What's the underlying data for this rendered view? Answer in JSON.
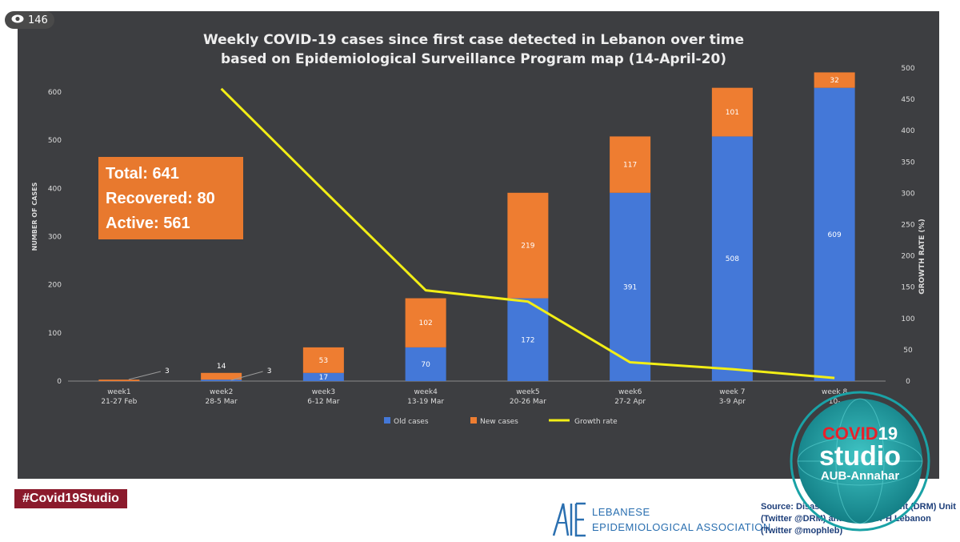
{
  "views": "146",
  "chart_data": {
    "type": "bar",
    "title_line1": "Weekly COVID-19 cases since first case detected in Lebanon over time",
    "title_line2": "based on Epidemiological Surveillance Program map (14-April-20)",
    "categories": [
      {
        "week": "week1",
        "dates": "21-27 Feb"
      },
      {
        "week": "week2",
        "dates": "28-5 Mar"
      },
      {
        "week": "week3",
        "dates": "6-12 Mar"
      },
      {
        "week": "week4",
        "dates": "13-19 Mar"
      },
      {
        "week": "week5",
        "dates": "20-26 Mar"
      },
      {
        "week": "week6",
        "dates": "27-2 Apr"
      },
      {
        "week": "week 7",
        "dates": "3-9 Apr"
      },
      {
        "week": "week 8",
        "dates": "10-"
      }
    ],
    "series": [
      {
        "name": "Old cases",
        "color": "#4478d8",
        "values": [
          0,
          3,
          17,
          70,
          172,
          391,
          508,
          609
        ],
        "labels": [
          "",
          "3",
          "17",
          "70",
          "172",
          "391",
          "508",
          "609"
        ]
      },
      {
        "name": "New cases",
        "color": "#ee7d31",
        "values": [
          3,
          14,
          53,
          102,
          219,
          117,
          101,
          32
        ],
        "labels": [
          "3",
          "14",
          "53",
          "102",
          "219",
          "117",
          "101",
          "32"
        ]
      },
      {
        "name": "Growth rate",
        "color": "#f2ee16",
        "type": "line",
        "axis": "right",
        "values": [
          null,
          467,
          305,
          145,
          127,
          30,
          19,
          5
        ]
      }
    ],
    "ylabel": "NUMBER OF CASES",
    "y2label": "GROWTH RATE (%)",
    "ylim": [
      0,
      650
    ],
    "y2lim": [
      0,
      500
    ],
    "yticks": [
      0,
      100,
      200,
      300,
      400,
      500,
      600
    ],
    "y2ticks": [
      0,
      50,
      100,
      150,
      200,
      250,
      300,
      350,
      400,
      450,
      500
    ],
    "legend_position": "bottom",
    "grid": false
  },
  "summary": {
    "total": "Total: 641",
    "recovered": "Recovered: 80",
    "active": "Active:  561"
  },
  "hashtag": "#Covid19Studio",
  "lea": {
    "line1": "LEBANESE",
    "line2": "EPIDEMIOLOGICAL ASSOCIATION"
  },
  "source": "Source: Disaster Risk Management (DRM) Unit (Twitter @DRM) and ESU MoPH Lebanon (Twitter @mophleb)",
  "studio": {
    "line1a": "COVID",
    "line1b": "19",
    "line2": "studio",
    "line3": "AUB-Annahar"
  }
}
